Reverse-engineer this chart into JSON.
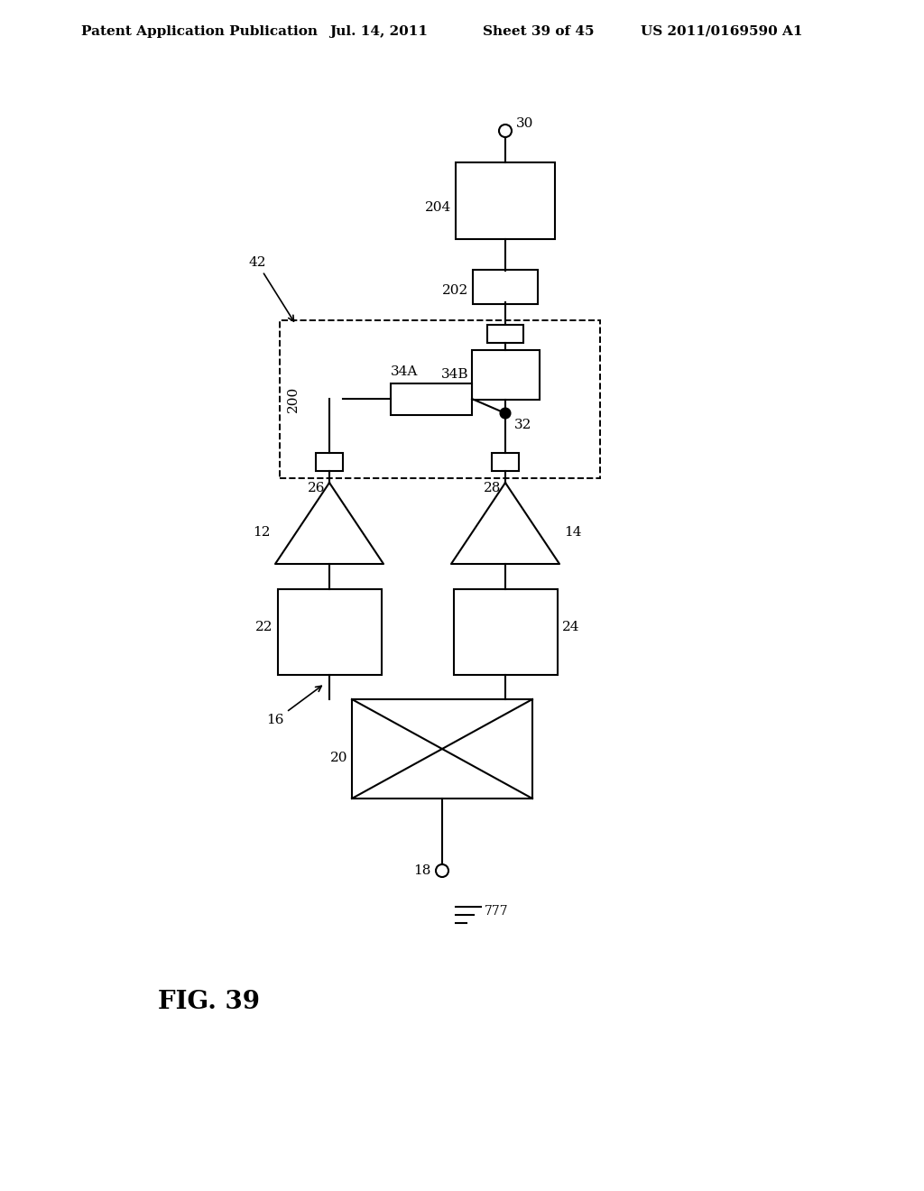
{
  "bg_color": "#ffffff",
  "line_color": "#000000",
  "header_text": "Patent Application Publication",
  "header_date": "Jul. 14, 2011",
  "header_sheet": "Sheet 39 of 45",
  "header_patent": "US 2011/0169590 A1",
  "fig_label": "FIG. 39"
}
